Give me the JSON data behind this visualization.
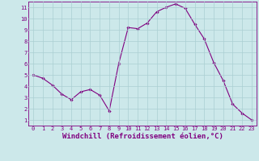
{
  "x": [
    0,
    1,
    2,
    3,
    4,
    5,
    6,
    7,
    8,
    9,
    10,
    11,
    12,
    13,
    14,
    15,
    16,
    17,
    18,
    19,
    20,
    21,
    22,
    23
  ],
  "y": [
    5.0,
    4.7,
    4.1,
    3.3,
    2.8,
    3.5,
    3.7,
    3.2,
    1.8,
    6.0,
    9.2,
    9.1,
    9.6,
    10.6,
    11.0,
    11.3,
    10.9,
    9.5,
    8.2,
    6.1,
    4.5,
    2.4,
    1.6,
    1.0
  ],
  "line_color": "#800080",
  "marker": "D",
  "marker_size": 1.8,
  "bg_color": "#cce8ea",
  "grid_color": "#aacfd2",
  "axis_color": "#800080",
  "tick_label_color": "#800080",
  "xlabel": "Windchill (Refroidissement éolien,°C)",
  "xlabel_fontsize": 6.5,
  "xlim": [
    -0.5,
    23.5
  ],
  "ylim": [
    0.5,
    11.5
  ],
  "xticks": [
    0,
    1,
    2,
    3,
    4,
    5,
    6,
    7,
    8,
    9,
    10,
    11,
    12,
    13,
    14,
    15,
    16,
    17,
    18,
    19,
    20,
    21,
    22,
    23
  ],
  "yticks": [
    1,
    2,
    3,
    4,
    5,
    6,
    7,
    8,
    9,
    10,
    11
  ]
}
